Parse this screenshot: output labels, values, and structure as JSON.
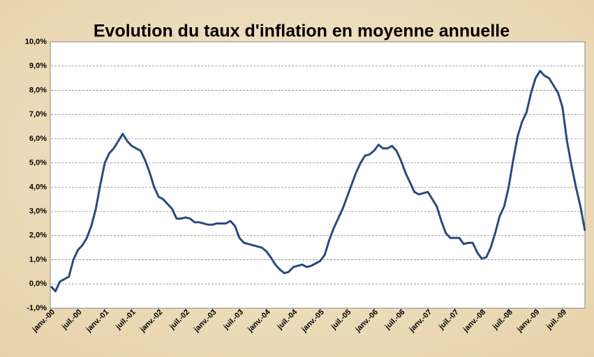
{
  "chart_data": {
    "type": "line",
    "title": "Evolution du taux d'inflation en moyenne annuelle",
    "categories": [
      "janv.-00",
      null,
      null,
      null,
      null,
      null,
      "juil.-00",
      null,
      null,
      null,
      null,
      null,
      "janv.-01",
      null,
      null,
      null,
      null,
      null,
      "juil.-01",
      null,
      null,
      null,
      null,
      null,
      "janv.-02",
      null,
      null,
      null,
      null,
      null,
      "juil.-02",
      null,
      null,
      null,
      null,
      null,
      "janv.-03",
      null,
      null,
      null,
      null,
      null,
      "juil.-03",
      null,
      null,
      null,
      null,
      null,
      "janv.-04",
      null,
      null,
      null,
      null,
      null,
      "juil.-04",
      null,
      null,
      null,
      null,
      null,
      "janv.-05",
      null,
      null,
      null,
      null,
      null,
      "juil.-05",
      null,
      null,
      null,
      null,
      null,
      "janv.-06",
      null,
      null,
      null,
      null,
      null,
      "juil.-06",
      null,
      null,
      null,
      null,
      null,
      "janv.-07",
      null,
      null,
      null,
      null,
      null,
      "juil.-07",
      null,
      null,
      null,
      null,
      null,
      "janv.-08",
      null,
      null,
      null,
      null,
      null,
      "juil.-08",
      null,
      null,
      null,
      null,
      null,
      "janv.-09",
      null,
      null,
      null,
      null,
      null,
      "juil.-09",
      null,
      null,
      null,
      null,
      null
    ],
    "series": [
      {
        "color": "#2a4a80",
        "values": [
          -0.1,
          -0.3,
          0.1,
          0.2,
          0.3,
          1.0,
          1.4,
          1.6,
          1.9,
          2.4,
          3.1,
          4.1,
          5.0,
          5.4,
          5.6,
          5.9,
          6.2,
          5.9,
          5.7,
          5.6,
          5.5,
          5.1,
          4.6,
          4.0,
          3.6,
          3.5,
          3.3,
          3.1,
          2.7,
          2.7,
          2.75,
          2.7,
          2.55,
          2.55,
          2.5,
          2.45,
          2.45,
          2.5,
          2.5,
          2.5,
          2.6,
          2.4,
          1.9,
          1.7,
          1.65,
          1.6,
          1.55,
          1.5,
          1.35,
          1.1,
          0.8,
          0.6,
          0.45,
          0.5,
          0.7,
          0.75,
          0.8,
          0.7,
          0.75,
          0.85,
          0.95,
          1.2,
          1.8,
          2.3,
          2.7,
          3.1,
          3.6,
          4.1,
          4.6,
          5.0,
          5.3,
          5.35,
          5.5,
          5.75,
          5.6,
          5.6,
          5.7,
          5.5,
          5.1,
          4.6,
          4.2,
          3.8,
          3.7,
          3.75,
          3.8,
          3.5,
          3.2,
          2.6,
          2.1,
          1.9,
          1.9,
          1.9,
          1.65,
          1.7,
          1.7,
          1.3,
          1.05,
          1.1,
          1.5,
          2.1,
          2.8,
          3.2,
          4.0,
          5.1,
          6.1,
          6.7,
          7.1,
          7.9,
          8.5,
          8.8,
          8.6,
          8.5,
          8.2,
          7.9,
          7.3,
          5.9,
          4.9,
          4.0,
          3.2,
          2.2
        ]
      }
    ],
    "ylim": [
      -1,
      10
    ],
    "yticks": [
      {
        "value": -1,
        "label": "-1,0%"
      },
      {
        "value": 0,
        "label": "0,0%"
      },
      {
        "value": 1,
        "label": "1,0%"
      },
      {
        "value": 2,
        "label": "2,0%"
      },
      {
        "value": 3,
        "label": "3,0%"
      },
      {
        "value": 4,
        "label": "4,0%"
      },
      {
        "value": 5,
        "label": "5,0%"
      },
      {
        "value": 6,
        "label": "6,0%"
      },
      {
        "value": 7,
        "label": "7,0%"
      },
      {
        "value": 8,
        "label": "8,0%"
      },
      {
        "value": 9,
        "label": "9,0%"
      },
      {
        "value": 10,
        "label": "10,0%"
      }
    ],
    "grid": true
  }
}
